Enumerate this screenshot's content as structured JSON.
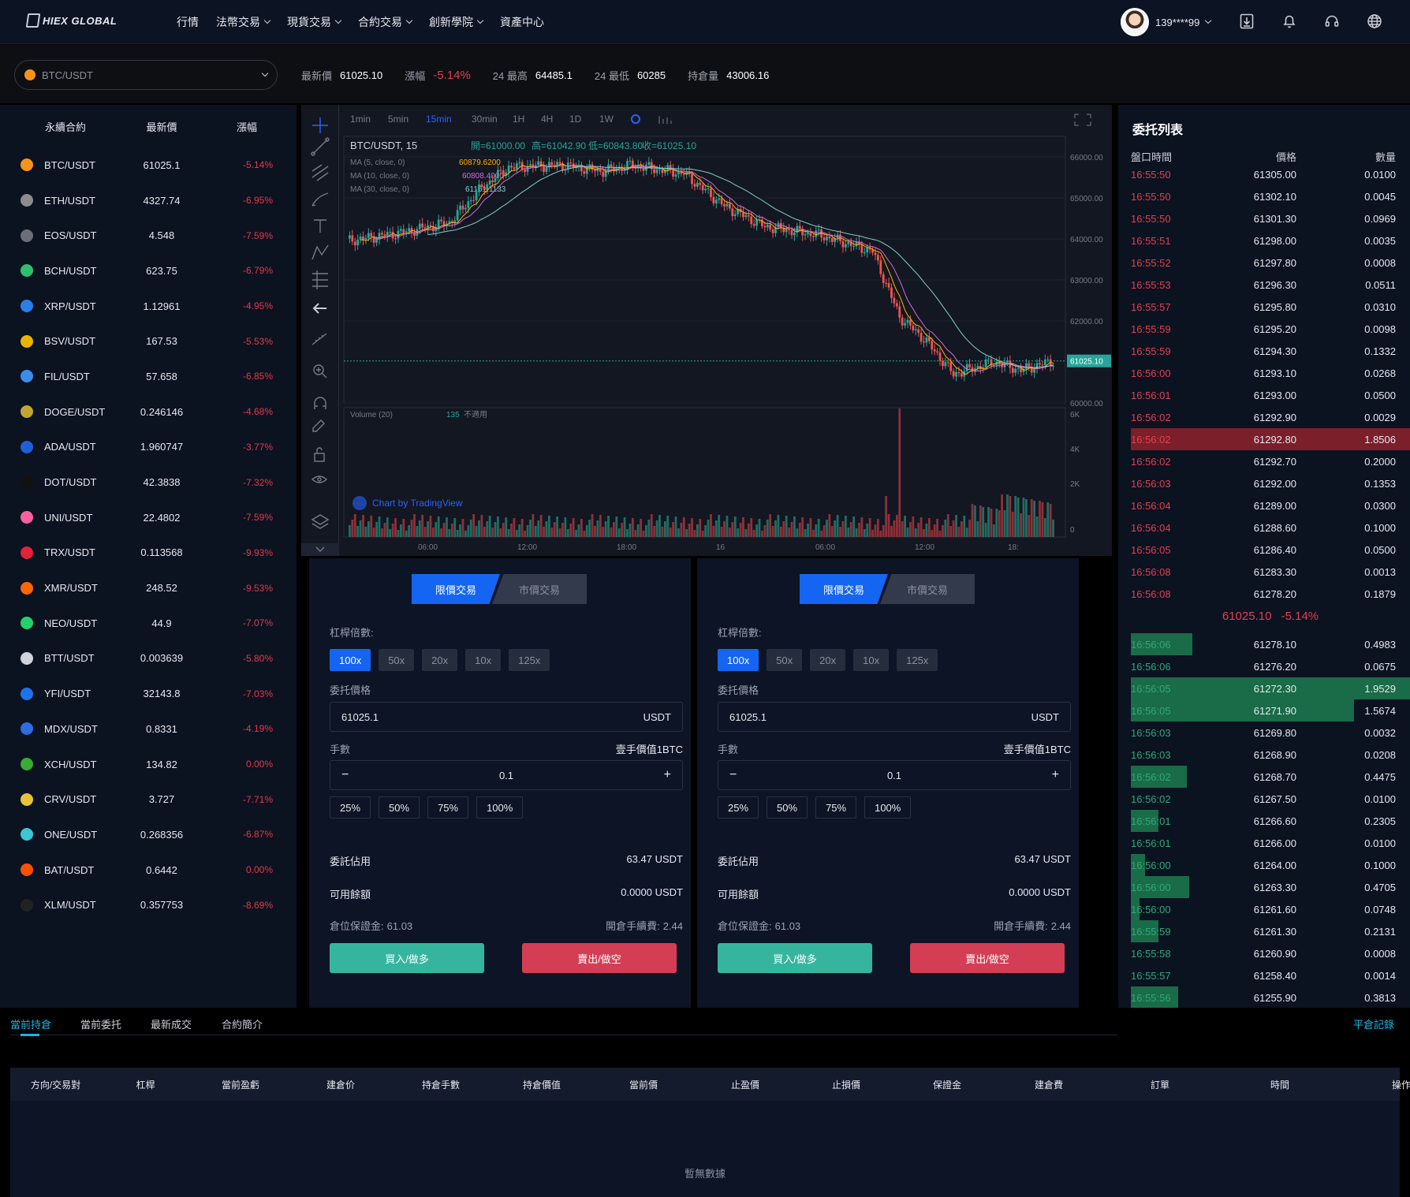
{
  "header": {
    "logo": "HIEX GLOBAL",
    "nav": [
      {
        "label": "行情",
        "dropdown": false
      },
      {
        "label": "法幣交易",
        "dropdown": true
      },
      {
        "label": "現貨交易",
        "dropdown": true
      },
      {
        "label": "合約交易",
        "dropdown": true
      },
      {
        "label": "創新學院",
        "dropdown": true
      },
      {
        "label": "資產中心",
        "dropdown": false
      }
    ],
    "user": "139****99",
    "icons": [
      "download-icon",
      "bell-icon",
      "headset-icon",
      "globe-icon"
    ]
  },
  "pairbar": {
    "selected_pair": "BTC/USDT",
    "last_price_label": "最新價",
    "last_price": "61025.10",
    "change_label": "漲幅",
    "change": "-5.14%",
    "high_label": "24 最高",
    "high": "64485.1",
    "low_label": "24 最低",
    "low": "60285",
    "oi_label": "持倉量",
    "oi": "43006.16"
  },
  "market": {
    "headers": [
      "永續合約",
      "最新價",
      "漲幅"
    ],
    "rows": [
      {
        "pair": "BTC/USDT",
        "price": "61025.1",
        "change": "-5.14%",
        "color": "#f7931a"
      },
      {
        "pair": "ETH/USDT",
        "price": "4327.74",
        "change": "-6.95%",
        "color": "#8c8c8c"
      },
      {
        "pair": "EOS/USDT",
        "price": "4.548",
        "change": "-7.59%",
        "color": "#6b6f7a"
      },
      {
        "pair": "BCH/USDT",
        "price": "623.75",
        "change": "-6.79%",
        "color": "#2fbf71"
      },
      {
        "pair": "XRP/USDT",
        "price": "1.12961",
        "change": "-4.95%",
        "color": "#2b7de9"
      },
      {
        "pair": "BSV/USDT",
        "price": "167.53",
        "change": "-5.53%",
        "color": "#eab300"
      },
      {
        "pair": "FIL/USDT",
        "price": "57.658",
        "change": "-6.85%",
        "color": "#3d8ce8"
      },
      {
        "pair": "DOGE/USDT",
        "price": "0.246146",
        "change": "-4.68%",
        "color": "#c2a633"
      },
      {
        "pair": "ADA/USDT",
        "price": "1.960747",
        "change": "-3.77%",
        "color": "#1f5fd6"
      },
      {
        "pair": "DOT/USDT",
        "price": "42.3838",
        "change": "-7.32%",
        "color": "#111111"
      },
      {
        "pair": "UNI/USDT",
        "price": "22.4802",
        "change": "-7.59%",
        "color": "#ff5f9e"
      },
      {
        "pair": "TRX/USDT",
        "price": "0.113568",
        "change": "-9.93%",
        "color": "#e0233a"
      },
      {
        "pair": "XMR/USDT",
        "price": "248.52",
        "change": "-9.53%",
        "color": "#ff6600"
      },
      {
        "pair": "NEO/USDT",
        "price": "44.9",
        "change": "-7.07%",
        "color": "#23d16b"
      },
      {
        "pair": "BTT/USDT",
        "price": "0.003639",
        "change": "-5.80%",
        "color": "#cfd3da"
      },
      {
        "pair": "YFI/USDT",
        "price": "32143.8",
        "change": "-7.03%",
        "color": "#1d73e8"
      },
      {
        "pair": "MDX/USDT",
        "price": "0.8331",
        "change": "-4.19%",
        "color": "#2f6ce0"
      },
      {
        "pair": "XCH/USDT",
        "price": "134.82",
        "change": "0.00%",
        "color": "#3aaa35"
      },
      {
        "pair": "CRV/USDT",
        "price": "3.727",
        "change": "-7.71%",
        "color": "#e9c23a"
      },
      {
        "pair": "ONE/USDT",
        "price": "0.268356",
        "change": "-6.87%",
        "color": "#39c7d6"
      },
      {
        "pair": "BAT/USDT",
        "price": "0.6442",
        "change": "0.00%",
        "color": "#ff5000"
      },
      {
        "pair": "XLM/USDT",
        "price": "0.357753",
        "change": "-8.69%",
        "color": "#222222"
      }
    ]
  },
  "chart": {
    "timeframes": [
      "1min",
      "5min",
      "15min",
      "30min",
      "1H",
      "4H",
      "1D",
      "1W"
    ],
    "active_tf": "15min",
    "symbol_line": "BTC/USDT, 15",
    "ohlc": {
      "o": "開=61000.00",
      "h": "高=61042.90",
      "l": "低=60843.80",
      "c": "收=61025.10"
    },
    "ma": [
      {
        "label": "MA (5, close, 0)",
        "value": "60879.6200",
        "color": "#ffb000"
      },
      {
        "label": "MA (10, close, 0)",
        "value": "60808.4000",
        "color": "#d46bd6"
      },
      {
        "label": "MA (30, close, 0)",
        "value": "61161.1133",
        "color": "#7fd1c7"
      }
    ],
    "volume_label": "Volume (20)",
    "volume_value": "135",
    "volume_note": "不適用",
    "price_ticks": [
      "66000.00",
      "65000.00",
      "64000.00",
      "63000.00",
      "62000.00",
      "61025.10",
      "60000.00"
    ],
    "vol_ticks": [
      "6K",
      "4K",
      "2K",
      "0"
    ],
    "time_ticks": [
      "06:00",
      "12:00",
      "18:00",
      "16",
      "06:00",
      "12:00",
      "18:"
    ],
    "watermark": "Chart by TradingView"
  },
  "forms": [
    {
      "tab_limit": "限價交易",
      "tab_market": "市價交易",
      "leverage_label": "杠桿倍數:",
      "leverages": [
        "100x",
        "50x",
        "20x",
        "10x",
        "125x"
      ],
      "price_label": "委托價格",
      "price": "61025.1",
      "price_unit": "USDT",
      "qty_label": "手數",
      "qty_note": "壹手價值1BTC",
      "qty": "0.1",
      "minus": "−",
      "plus": "+",
      "pcts": [
        "25%",
        "50%",
        "75%",
        "100%"
      ],
      "occupied_label": "委託佔用",
      "occupied": "63.47 USDT",
      "available_label": "可用餘額",
      "available": "0.0000 USDT",
      "margin_label": "倉位保證金:",
      "margin": "61.03",
      "fee_label": "開倉手續費:",
      "fee": "2.44",
      "buy": "買入/做多",
      "sell": "賣出/做空"
    },
    {
      "tab_limit": "限價交易",
      "tab_market": "市價交易",
      "leverage_label": "杠桿倍數:",
      "leverages": [
        "100x",
        "50x",
        "20x",
        "10x",
        "125x"
      ],
      "price_label": "委托價格",
      "price": "61025.1",
      "price_unit": "USDT",
      "qty_label": "手數",
      "qty_note": "壹手價值1BTC",
      "qty": "0.1",
      "minus": "−",
      "plus": "+",
      "pcts": [
        "25%",
        "50%",
        "75%",
        "100%"
      ],
      "occupied_label": "委託佔用",
      "occupied": "63.47 USDT",
      "available_label": "可用餘額",
      "available": "0.0000 USDT",
      "margin_label": "倉位保證金:",
      "margin": "61.03",
      "fee_label": "開倉手續費:",
      "fee": "2.44",
      "buy": "買入/做多",
      "sell": "賣出/做空"
    }
  ],
  "orderbook": {
    "title": "委托列表",
    "headers": [
      "盤口時間",
      "價格",
      "數量"
    ],
    "asks": [
      {
        "t": "16:55:50",
        "p": "61305.00",
        "q": "0.0100",
        "depth": 0.0
      },
      {
        "t": "16:55:50",
        "p": "61302.10",
        "q": "0.0045",
        "depth": 0.0
      },
      {
        "t": "16:55:50",
        "p": "61301.30",
        "q": "0.0969",
        "depth": 0.0
      },
      {
        "t": "16:55:51",
        "p": "61298.00",
        "q": "0.0035",
        "depth": 0.0
      },
      {
        "t": "16:55:52",
        "p": "61297.80",
        "q": "0.0008",
        "depth": 0.0
      },
      {
        "t": "16:55:53",
        "p": "61296.30",
        "q": "0.0511",
        "depth": 0.0
      },
      {
        "t": "16:55:57",
        "p": "61295.80",
        "q": "0.0310",
        "depth": 0.0
      },
      {
        "t": "16:55:59",
        "p": "61295.20",
        "q": "0.0098",
        "depth": 0.0
      },
      {
        "t": "16:55:59",
        "p": "61294.30",
        "q": "0.1332",
        "depth": 0.0
      },
      {
        "t": "16:56:00",
        "p": "61293.10",
        "q": "0.0268",
        "depth": 0.0
      },
      {
        "t": "16:56:01",
        "p": "61293.00",
        "q": "0.0500",
        "depth": 0.0
      },
      {
        "t": "16:56:02",
        "p": "61292.90",
        "q": "0.0029",
        "depth": 0.0
      },
      {
        "t": "16:56:02",
        "p": "61292.80",
        "q": "1.8506",
        "depth": 1.0
      },
      {
        "t": "16:56:02",
        "p": "61292.70",
        "q": "0.2000",
        "depth": 0.0
      },
      {
        "t": "16:56:03",
        "p": "61292.00",
        "q": "0.1353",
        "depth": 0.0
      },
      {
        "t": "16:56:04",
        "p": "61289.00",
        "q": "0.0300",
        "depth": 0.0
      },
      {
        "t": "16:56:04",
        "p": "61288.60",
        "q": "0.1000",
        "depth": 0.0
      },
      {
        "t": "16:56:05",
        "p": "61286.40",
        "q": "0.0500",
        "depth": 0.0
      },
      {
        "t": "16:56:08",
        "p": "61283.30",
        "q": "0.0013",
        "depth": 0.0
      },
      {
        "t": "16:56:08",
        "p": "61278.20",
        "q": "0.1879",
        "depth": 0.0
      }
    ],
    "mid_price": "61025.10",
    "mid_change": "-5.14%",
    "bids": [
      {
        "t": "16:56:06",
        "p": "61278.10",
        "q": "0.4983",
        "depth": 0.22
      },
      {
        "t": "16:56:06",
        "p": "61276.20",
        "q": "0.0675",
        "depth": 0.0
      },
      {
        "t": "16:56:05",
        "p": "61272.30",
        "q": "1.9529",
        "depth": 1.0
      },
      {
        "t": "16:56:05",
        "p": "61271.90",
        "q": "1.5674",
        "depth": 0.8
      },
      {
        "t": "16:56:03",
        "p": "61269.80",
        "q": "0.0032",
        "depth": 0.0
      },
      {
        "t": "16:56:03",
        "p": "61268.90",
        "q": "0.0208",
        "depth": 0.0
      },
      {
        "t": "16:56:02",
        "p": "61268.70",
        "q": "0.4475",
        "depth": 0.2
      },
      {
        "t": "16:56:02",
        "p": "61267.50",
        "q": "0.0100",
        "depth": 0.0
      },
      {
        "t": "16:56:01",
        "p": "61266.60",
        "q": "0.2305",
        "depth": 0.1
      },
      {
        "t": "16:56:01",
        "p": "61266.00",
        "q": "0.0100",
        "depth": 0.0
      },
      {
        "t": "16:56:00",
        "p": "61264.00",
        "q": "0.1000",
        "depth": 0.05
      },
      {
        "t": "16:56:00",
        "p": "61263.30",
        "q": "0.4705",
        "depth": 0.21
      },
      {
        "t": "16:56:00",
        "p": "61261.60",
        "q": "0.0748",
        "depth": 0.03
      },
      {
        "t": "16:55:59",
        "p": "61261.30",
        "q": "0.2131",
        "depth": 0.1
      },
      {
        "t": "16:55:58",
        "p": "61260.90",
        "q": "0.0008",
        "depth": 0.0
      },
      {
        "t": "16:55:57",
        "p": "61258.40",
        "q": "0.0014",
        "depth": 0.0
      },
      {
        "t": "16:55:56",
        "p": "61255.90",
        "q": "0.3813",
        "depth": 0.17
      }
    ],
    "history_link": "平倉記錄"
  },
  "bottom": {
    "tabs": [
      "當前持倉",
      "當前委托",
      "最新成交",
      "合約簡介"
    ],
    "active_tab": "當前持倉",
    "columns": [
      "方向/交易對",
      "杠桿",
      "當前盈虧",
      "建倉价",
      "持倉手數",
      "持倉價值",
      "當前價",
      "止盈價",
      "止損價",
      "保證金",
      "建倉費",
      "訂單",
      "時間",
      "操作"
    ],
    "empty": "暫無數據"
  }
}
